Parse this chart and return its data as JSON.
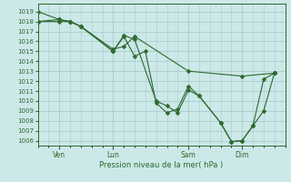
{
  "background_color": "#cce8e8",
  "grid_color": "#aacccc",
  "line_color": "#2d6a2d",
  "marker_color": "#2d6a2d",
  "ylabel_ticks": [
    1006,
    1007,
    1008,
    1009,
    1010,
    1011,
    1012,
    1013,
    1014,
    1015,
    1016,
    1017,
    1018,
    1019
  ],
  "xlabel": "Pression niveau de la mer( hPa )",
  "xtick_labels": [
    "Ven",
    "Lun",
    "Sam",
    "Dim"
  ],
  "xtick_positions": [
    2,
    7,
    14,
    19
  ],
  "series1_x": [
    0,
    2,
    3,
    4,
    7,
    7,
    8,
    9,
    11,
    12,
    13,
    14,
    15,
    17,
    18,
    19,
    20,
    21,
    22
  ],
  "series1_y": [
    1019.0,
    1018.2,
    1018.0,
    1017.5,
    1015.0,
    1015.0,
    1016.6,
    1016.2,
    1010.0,
    1009.5,
    1008.8,
    1011.1,
    1010.5,
    1007.8,
    1005.9,
    1006.0,
    1007.5,
    1009.0,
    1012.8
  ],
  "series2_x": [
    0,
    2,
    3,
    4,
    7,
    8,
    9,
    10,
    11,
    12,
    13,
    14,
    15,
    17,
    18,
    19,
    20,
    21,
    22
  ],
  "series2_y": [
    1018.0,
    1018.2,
    1018.0,
    1017.5,
    1015.0,
    1016.5,
    1014.5,
    1015.0,
    1009.8,
    1008.8,
    1009.2,
    1011.5,
    1010.5,
    1007.8,
    1005.9,
    1006.0,
    1007.5,
    1012.2,
    1012.8
  ],
  "series3_x": [
    0,
    2,
    3,
    4,
    7,
    8,
    9,
    14,
    19,
    22
  ],
  "series3_y": [
    1018.0,
    1018.0,
    1018.0,
    1017.5,
    1015.2,
    1015.5,
    1016.5,
    1013.0,
    1012.5,
    1012.8
  ],
  "ylim": [
    1005.5,
    1019.8
  ],
  "xlim": [
    0,
    23
  ],
  "figwidth": 3.2,
  "figheight": 2.0,
  "dpi": 100
}
